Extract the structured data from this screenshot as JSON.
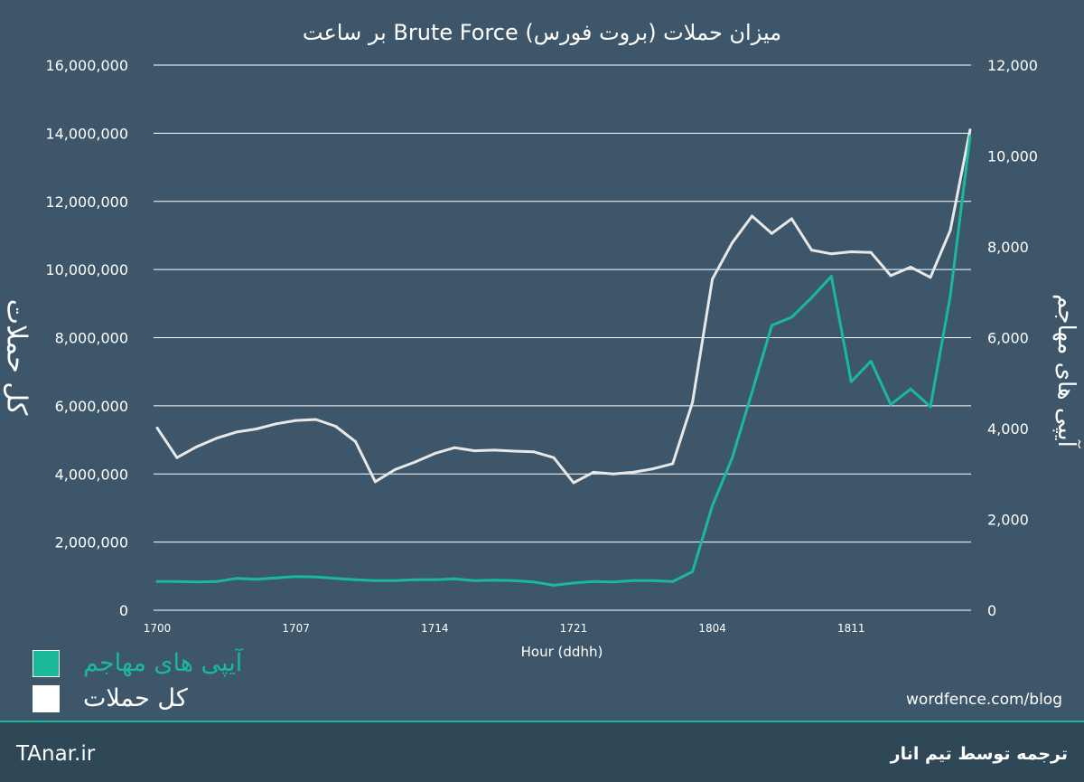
{
  "chart_data": {
    "type": "line",
    "title": "میزان حملات (بروت فورس) Brute Force بر ساعت",
    "xlabel": "Hour (ddhh)",
    "ylabel_left": "کل حملات",
    "ylabel_right": "آیپی های مهاجم",
    "x_tick_labels": [
      "1700",
      "1707",
      "1714",
      "1721",
      "1804",
      "1811"
    ],
    "x_tick_indices": [
      0,
      7,
      14,
      21,
      28,
      35
    ],
    "y_left_ticks": [
      "0",
      "2,000,000",
      "4,000,000",
      "6,000,000",
      "8,000,000",
      "10,000,000",
      "12,000,000",
      "14,000,000",
      "16,000,000"
    ],
    "y_right_ticks": [
      "0",
      "2,000",
      "4,000",
      "6,000",
      "8,000",
      "10,000",
      "12,000"
    ],
    "ylim_left": [
      0,
      16000000
    ],
    "ylim_right": [
      0,
      12000
    ],
    "grid": true,
    "series": [
      {
        "name": "کل حملات",
        "axis": "left",
        "color": "#e8e8e8",
        "values": [
          5350000,
          4480000,
          4800000,
          5050000,
          5230000,
          5320000,
          5470000,
          5570000,
          5600000,
          5400000,
          4950000,
          3770000,
          4130000,
          4350000,
          4600000,
          4770000,
          4680000,
          4700000,
          4670000,
          4650000,
          4480000,
          3740000,
          4050000,
          4000000,
          4050000,
          4150000,
          4300000,
          6100000,
          9720000,
          10780000,
          11570000,
          11060000,
          11490000,
          10570000,
          10460000,
          10520000,
          10500000,
          9820000,
          10070000,
          9770000,
          11150000,
          14100000
        ]
      },
      {
        "name": "آیپی های مهاجم",
        "axis": "right",
        "color": "#19b99a",
        "values": [
          630,
          630,
          620,
          630,
          700,
          680,
          710,
          740,
          730,
          700,
          670,
          650,
          650,
          670,
          670,
          690,
          650,
          660,
          650,
          620,
          550,
          600,
          630,
          620,
          650,
          650,
          630,
          850,
          2300,
          3350,
          4800,
          6270,
          6450,
          6880,
          7350,
          5030,
          5480,
          4530,
          4870,
          4480,
          6920,
          10430
        ]
      }
    ],
    "legend_position": "bottom-left"
  },
  "credit": "wordfence.com/blog",
  "footer": {
    "site": "TAnar.ir",
    "team": "ترجمه توسط تیم انار"
  }
}
